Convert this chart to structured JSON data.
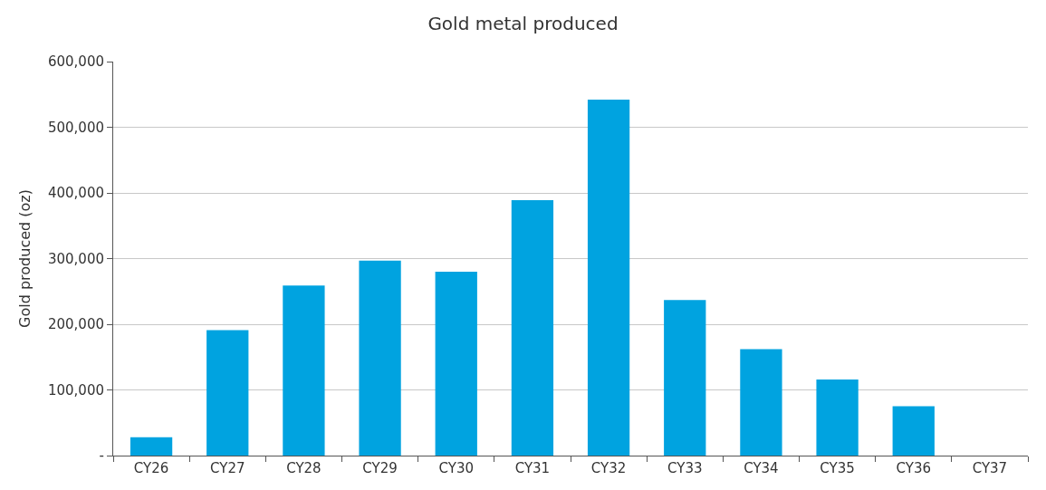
{
  "chart_data": {
    "type": "bar",
    "title": "Gold metal produced",
    "ylabel": "Gold produced (oz)",
    "categories": [
      "CY26",
      "CY27",
      "CY28",
      "CY29",
      "CY30",
      "CY31",
      "CY32",
      "CY33",
      "CY34",
      "CY35",
      "CY36",
      "CY37"
    ],
    "values": [
      28000,
      191000,
      259000,
      297000,
      280000,
      389000,
      542000,
      237000,
      162000,
      116000,
      75000,
      0
    ],
    "color": "#00a3e0",
    "ylim": [
      0,
      600000
    ],
    "yticks": [
      {
        "value": 0,
        "label": "-"
      },
      {
        "value": 100000,
        "label": "100,000"
      },
      {
        "value": 200000,
        "label": "200,000"
      },
      {
        "value": 300000,
        "label": "300,000"
      },
      {
        "value": 400000,
        "label": "400,000"
      },
      {
        "value": 500000,
        "label": "500,000"
      },
      {
        "value": 600000,
        "label": "600,000"
      }
    ],
    "grid": "y"
  }
}
